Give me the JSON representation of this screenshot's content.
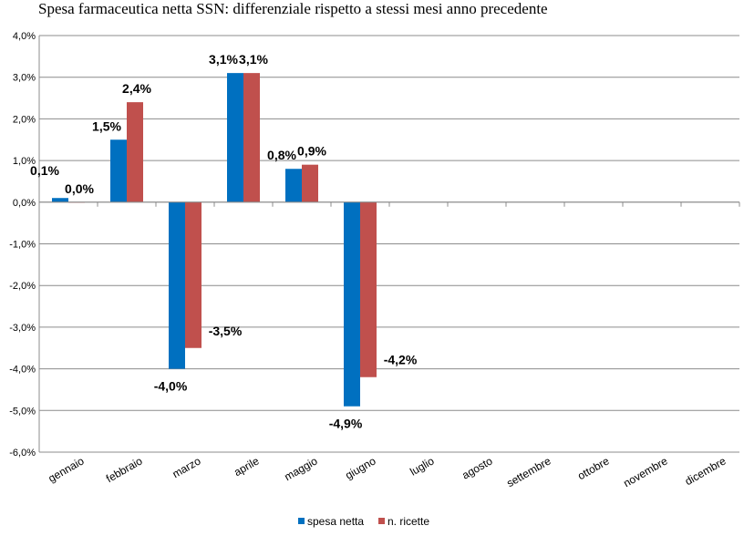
{
  "chart_data": {
    "type": "bar",
    "title": "Spesa farmaceutica netta SSN: differenziale rispetto a stessi mesi anno precedente",
    "xlabel": "",
    "ylabel": "",
    "ylim": [
      -6,
      4
    ],
    "yticks": [
      4,
      3,
      2,
      1,
      0,
      -1,
      -2,
      -3,
      -4,
      -5,
      -6
    ],
    "ytick_labels": [
      "4,0%",
      "3,0%",
      "2,0%",
      "1,0%",
      "0,0%",
      "-1,0%",
      "-2,0%",
      "-3,0%",
      "-4,0%",
      "-5,0%",
      "-6,0%"
    ],
    "grid": true,
    "legend_position": "bottom",
    "categories": [
      "gennaio",
      "febbraio",
      "marzo",
      "aprile",
      "maggio",
      "giugno",
      "luglio",
      "agosto",
      "settembre",
      "ottobre",
      "novembre",
      "dicembre"
    ],
    "series": [
      {
        "name": "spesa netta",
        "color": "#0070C0",
        "values": [
          0.1,
          1.5,
          -4.0,
          3.1,
          0.8,
          -4.9,
          null,
          null,
          null,
          null,
          null,
          null
        ],
        "labels": [
          "0,1%",
          "1,5%",
          "-4,0%",
          "3,1%",
          "0,8%",
          "-4,9%",
          "",
          "",
          "",
          "",
          "",
          ""
        ]
      },
      {
        "name": "n. ricette",
        "color": "#C0504D",
        "values": [
          0.0,
          2.4,
          -3.5,
          3.1,
          0.9,
          -4.2,
          null,
          null,
          null,
          null,
          null,
          null
        ],
        "labels": [
          "0,0%",
          "2,4%",
          "-3,5%",
          "3,1%",
          "0,9%",
          "-4,2%",
          "",
          "",
          "",
          "",
          "",
          ""
        ]
      }
    ]
  }
}
